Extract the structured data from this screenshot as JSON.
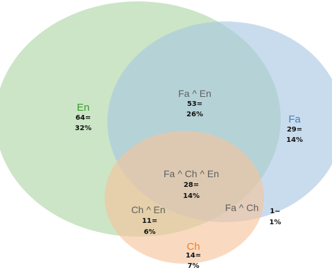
{
  "colors": {
    "en_fill": "#b9dcb3",
    "fa_fill": "#a8c6e2",
    "ch_fill": "#f6c49b",
    "en_label": "#3a9b2a",
    "fa_label": "#3f83c0",
    "ch_label": "#ef8028"
  },
  "regions": {
    "en": {
      "label": "En",
      "count": "64=",
      "pct": "32%"
    },
    "fa": {
      "label": "Fa",
      "count": "29=",
      "pct": "14%"
    },
    "ch": {
      "label": "Ch",
      "count": "14=",
      "pct": "7%"
    },
    "fa_en": {
      "label": "Fa ^ En",
      "count": "53=",
      "pct": "26%"
    },
    "fa_ch_en": {
      "label": "Fa ^ Ch ^ En",
      "count": "28=",
      "pct": "14%"
    },
    "ch_en": {
      "label": "Ch ^ En",
      "count": "11=",
      "pct": "6%"
    },
    "fa_ch": {
      "label": "Fa ^ Ch",
      "count": "1~",
      "pct": "1%"
    }
  }
}
